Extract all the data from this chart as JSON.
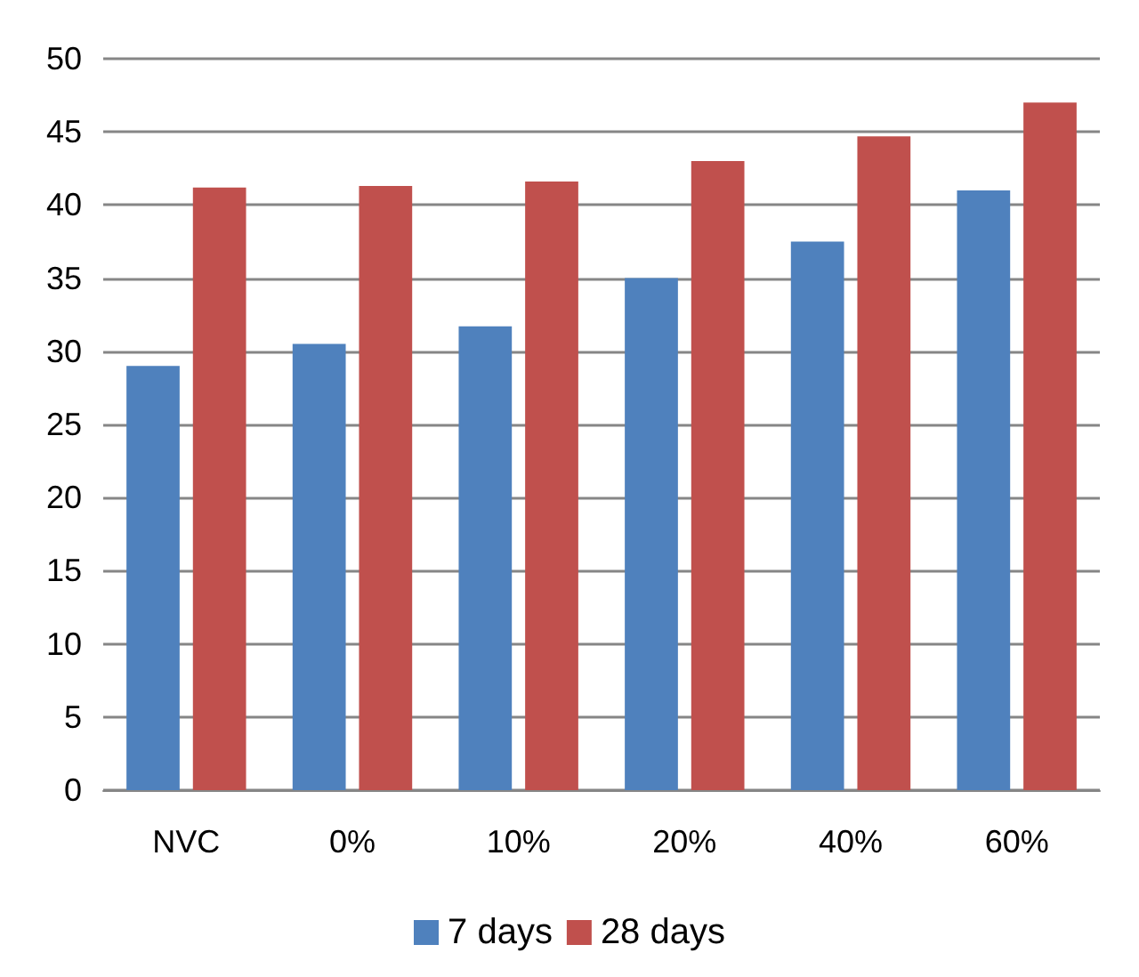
{
  "chart_data": {
    "type": "bar",
    "categories": [
      "NVC",
      "0%",
      "10%",
      "20%",
      "40%",
      "60%"
    ],
    "series": [
      {
        "name": "7 days",
        "color": "#4f81bd",
        "values": [
          29.0,
          30.5,
          31.7,
          35.0,
          37.5,
          41.0
        ]
      },
      {
        "name": "28 days",
        "color": "#c0504d",
        "values": [
          41.2,
          41.3,
          41.6,
          43.0,
          44.7,
          47.0
        ]
      }
    ],
    "ylim": [
      0,
      50
    ],
    "yticks": [
      0,
      5,
      10,
      15,
      20,
      25,
      30,
      35,
      40,
      45,
      50
    ],
    "grid": "y",
    "legend": "bottom"
  }
}
